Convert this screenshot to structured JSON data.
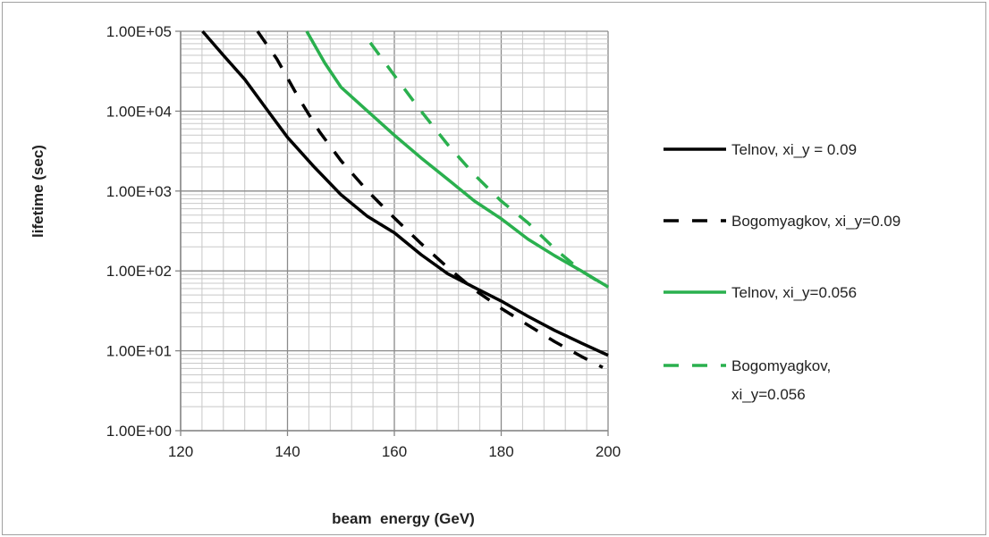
{
  "chart_data": {
    "type": "line",
    "xlabel": "beam  energy (GeV)",
    "ylabel": "lifetime (sec)",
    "xlim": [
      120,
      200
    ],
    "ylim": [
      1,
      100000
    ],
    "yscale": "log",
    "x_ticks": [
      "120",
      "140",
      "160",
      "180",
      "200"
    ],
    "y_ticks": [
      "1.00E+00",
      "1.00E+01",
      "1.00E+02",
      "1.00E+03",
      "1.00E+04",
      "1.00E+05"
    ],
    "grid": true,
    "legend_position": "right",
    "series": [
      {
        "name": "Telnov, xi_y = 0.09",
        "color": "#000000",
        "dash": "solid",
        "x": [
          124.1,
          128,
          132,
          136,
          140,
          145,
          150,
          155,
          160,
          165,
          170,
          175,
          180,
          185,
          190,
          195,
          200
        ],
        "y": [
          100000,
          50000,
          25000,
          10800,
          4700,
          2000,
          900,
          480,
          300,
          160,
          92,
          62,
          42,
          27,
          18,
          12.5,
          8.8
        ]
      },
      {
        "name": "Bogomyagkov, xi_y=0.09",
        "color": "#000000",
        "dash": "dashed",
        "x": [
          134.4,
          138,
          142,
          146,
          150,
          155,
          160,
          165,
          170,
          175,
          180,
          185,
          190,
          195,
          199
        ],
        "y": [
          100000,
          45000,
          15000,
          5500,
          2400,
          1000,
          460,
          220,
          110,
          58,
          34,
          21,
          13,
          8.5,
          6.2
        ]
      },
      {
        "name": "Telnov, xi_y=0.056",
        "color": "#2ab04e",
        "dash": "solid",
        "x": [
          143.6,
          147,
          150,
          155,
          160,
          165,
          170,
          175,
          180,
          185,
          190,
          195,
          200
        ],
        "y": [
          100000,
          40000,
          20000,
          10000,
          5000,
          2600,
          1400,
          750,
          450,
          250,
          155,
          100,
          63
        ]
      },
      {
        "name": "Bogomyagkov, xi_y=0.056",
        "name_lines": [
          "Bogomyagkov,",
          "xi_y=0.056"
        ],
        "color": "#2ab04e",
        "dash": "dashed",
        "x": [
          155.5,
          160,
          165,
          170,
          175,
          180,
          185,
          190,
          195,
          200
        ],
        "y": [
          72000,
          28000,
          10000,
          3800,
          1600,
          750,
          400,
          190,
          100,
          62
        ]
      }
    ]
  }
}
